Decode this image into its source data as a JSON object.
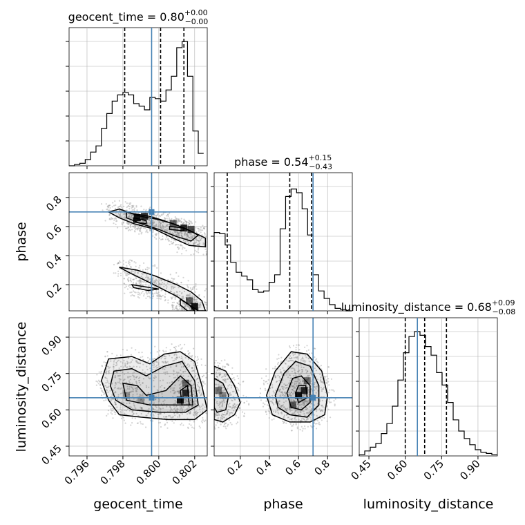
{
  "chart_data": {
    "type": "corner",
    "parameters": [
      {
        "name": "geocent_time",
        "range": [
          0.795,
          0.8027
        ],
        "truth": 0.7996,
        "title": "geocent_time = 0.80",
        "title_sup": "+0.00",
        "title_sub": "−0.00",
        "quantiles": [
          0.7981,
          0.8001,
          0.8014
        ],
        "ticks": [
          0.796,
          0.798,
          0.8,
          0.802
        ],
        "tick_labels": [
          "0.796",
          "0.798",
          "0.800",
          "0.802"
        ]
      },
      {
        "name": "phase",
        "range": [
          0.02,
          0.97
        ],
        "truth": 0.7,
        "title": "phase = 0.54",
        "title_sup": "+0.15",
        "title_sub": "−0.43",
        "quantiles": [
          0.11,
          0.54,
          0.69
        ],
        "ticks": [
          0.2,
          0.4,
          0.6,
          0.8
        ],
        "tick_labels": [
          "0.2",
          "0.4",
          "0.6",
          "0.8"
        ]
      },
      {
        "name": "luminosity_distance",
        "range": [
          0.41,
          0.98
        ],
        "truth": 0.65,
        "title": "luminosity_distance = 0.68",
        "title_sup": "+0.09",
        "title_sub": "−0.08",
        "quantiles": [
          0.6,
          0.68,
          0.77
        ],
        "ticks": [
          0.45,
          0.6,
          0.75,
          0.9
        ],
        "tick_labels": [
          "0.45",
          "0.60",
          "0.75",
          "0.90"
        ]
      }
    ],
    "histograms": [
      {
        "parameter": "geocent_time",
        "bins": [
          0.795,
          0.7953,
          0.7956,
          0.7959,
          0.7962,
          0.7965,
          0.7968,
          0.7971,
          0.7974,
          0.7977,
          0.798,
          0.7983,
          0.7986,
          0.7989,
          0.7992,
          0.7995,
          0.7998,
          0.8001,
          0.8004,
          0.8007,
          0.801,
          0.8013,
          0.8016,
          0.8019,
          0.8022,
          0.8025
        ],
        "counts": [
          0,
          0.01,
          0.02,
          0.05,
          0.11,
          0.16,
          0.3,
          0.42,
          0.52,
          0.57,
          0.59,
          0.57,
          0.5,
          0.48,
          0.45,
          0.55,
          0.54,
          0.52,
          0.61,
          0.72,
          0.95,
          1.0,
          0.72,
          0.28,
          0.1
        ],
        "ylim": [
          0,
          1.0
        ]
      },
      {
        "parameter": "phase",
        "bins": [
          0.02,
          0.0578,
          0.0956,
          0.1334,
          0.1712,
          0.209,
          0.2468,
          0.2846,
          0.3224,
          0.3602,
          0.398,
          0.4358,
          0.4736,
          0.5114,
          0.5492,
          0.587,
          0.6248,
          0.6626,
          0.7004,
          0.7382,
          0.776,
          0.8138,
          0.8516,
          0.8894,
          0.9272,
          0.965
        ],
        "counts": [
          0.63,
          0.62,
          0.53,
          0.39,
          0.31,
          0.28,
          0.25,
          0.17,
          0.15,
          0.16,
          0.23,
          0.29,
          0.66,
          0.92,
          0.98,
          0.95,
          0.82,
          0.61,
          0.29,
          0.16,
          0.1,
          0.05,
          0.02,
          0.01,
          0.0
        ],
        "ylim": [
          0,
          1.0
        ]
      },
      {
        "parameter": "luminosity_distance",
        "bins": [
          0.41,
          0.4328,
          0.4556,
          0.4784,
          0.5012,
          0.524,
          0.5468,
          0.5696,
          0.5924,
          0.6152,
          0.638,
          0.6608,
          0.6836,
          0.7064,
          0.7292,
          0.752,
          0.7748,
          0.7976,
          0.8204,
          0.8432,
          0.866,
          0.8888,
          0.9116,
          0.9344,
          0.9572,
          0.98
        ],
        "counts": [
          0.01,
          0.04,
          0.07,
          0.1,
          0.18,
          0.26,
          0.4,
          0.61,
          0.83,
          0.96,
          1.0,
          0.97,
          0.88,
          0.81,
          0.67,
          0.57,
          0.43,
          0.29,
          0.2,
          0.14,
          0.09,
          0.05,
          0.03,
          0.02,
          0.01
        ],
        "ylim": [
          0,
          1.0
        ]
      }
    ],
    "contour_panels": [
      {
        "x": "geocent_time",
        "y": "phase",
        "levels": [
          [
            [
              0.7978,
              0.72
            ],
            [
              0.7985,
              0.69
            ],
            [
              0.7995,
              0.67
            ],
            [
              0.8003,
              0.64
            ],
            [
              0.8012,
              0.6
            ],
            [
              0.8021,
              0.55
            ],
            [
              0.8026,
              0.52
            ],
            [
              0.8026,
              0.46
            ],
            [
              0.8017,
              0.47
            ],
            [
              0.8008,
              0.52
            ],
            [
              0.7998,
              0.58
            ],
            [
              0.7986,
              0.62
            ],
            [
              0.7978,
              0.66
            ],
            [
              0.7972,
              0.7
            ]
          ],
          [
            [
              0.7982,
              0.7
            ],
            [
              0.799,
              0.67
            ],
            [
              0.7999,
              0.65
            ],
            [
              0.8008,
              0.62
            ],
            [
              0.8016,
              0.58
            ],
            [
              0.8022,
              0.54
            ],
            [
              0.8018,
              0.5
            ],
            [
              0.801,
              0.53
            ],
            [
              0.8,
              0.58
            ],
            [
              0.799,
              0.62
            ],
            [
              0.7982,
              0.66
            ]
          ],
          [
            [
              0.7986,
              0.66
            ],
            [
              0.7993,
              0.64
            ],
            [
              0.7993,
              0.62
            ],
            [
              0.7986,
              0.63
            ]
          ],
          [
            [
              0.8006,
              0.6
            ],
            [
              0.8014,
              0.59
            ],
            [
              0.8014,
              0.57
            ],
            [
              0.8006,
              0.58
            ]
          ],
          [
            [
              0.7978,
              0.32
            ],
            [
              0.7984,
              0.28
            ],
            [
              0.7994,
              0.22
            ],
            [
              0.8002,
              0.17
            ],
            [
              0.801,
              0.12
            ],
            [
              0.8016,
              0.07
            ],
            [
              0.8022,
              0.02
            ],
            [
              0.8026,
              0.02
            ],
            [
              0.8024,
              0.09
            ],
            [
              0.8018,
              0.15
            ],
            [
              0.801,
              0.2
            ],
            [
              0.7998,
              0.26
            ],
            [
              0.7988,
              0.3
            ]
          ],
          [
            [
              0.7985,
              0.2
            ],
            [
              0.7995,
              0.18
            ],
            [
              0.8,
              0.17
            ],
            [
              0.7994,
              0.16
            ],
            [
              0.7986,
              0.18
            ]
          ],
          [
            [
              0.8012,
              0.1
            ],
            [
              0.8017,
              0.06
            ],
            [
              0.802,
              0.02
            ],
            [
              0.8016,
              0.02
            ],
            [
              0.8012,
              0.06
            ]
          ]
        ],
        "dense_cells": [
          [
            0.7988,
            0.66,
            0.9
          ],
          [
            0.7992,
            0.67,
            0.8
          ],
          [
            0.8008,
            0.62,
            0.6
          ],
          [
            0.8014,
            0.59,
            0.8
          ],
          [
            0.8018,
            0.58,
            0.7
          ],
          [
            0.802,
            0.05,
            0.9
          ],
          [
            0.8017,
            0.09,
            0.6
          ]
        ]
      },
      {
        "x": "geocent_time",
        "y": "luminosity_distance",
        "levels": [
          [
            [
              0.7972,
              0.81
            ],
            [
              0.7985,
              0.82
            ],
            [
              0.7995,
              0.79
            ],
            [
              0.8003,
              0.83
            ],
            [
              0.8012,
              0.84
            ],
            [
              0.802,
              0.8
            ],
            [
              0.8024,
              0.7
            ],
            [
              0.8027,
              0.6
            ],
            [
              0.802,
              0.56
            ],
            [
              0.8005,
              0.56
            ],
            [
              0.799,
              0.57
            ],
            [
              0.7978,
              0.58
            ],
            [
              0.7972,
              0.64
            ],
            [
              0.7968,
              0.72
            ]
          ],
          [
            [
              0.7975,
              0.76
            ],
            [
              0.7985,
              0.77
            ],
            [
              0.7993,
              0.74
            ],
            [
              0.8003,
              0.78
            ],
            [
              0.8013,
              0.8
            ],
            [
              0.802,
              0.72
            ],
            [
              0.8022,
              0.62
            ],
            [
              0.8015,
              0.59
            ],
            [
              0.8,
              0.59
            ],
            [
              0.7985,
              0.6
            ],
            [
              0.7976,
              0.64
            ],
            [
              0.7973,
              0.7
            ]
          ],
          [
            [
              0.798,
              0.71
            ],
            [
              0.7988,
              0.7
            ],
            [
              0.7993,
              0.66
            ],
            [
              0.8004,
              0.68
            ],
            [
              0.8012,
              0.74
            ],
            [
              0.8018,
              0.7
            ],
            [
              0.8019,
              0.62
            ],
            [
              0.801,
              0.62
            ],
            [
              0.7995,
              0.62
            ],
            [
              0.7982,
              0.64
            ]
          ],
          [
            [
              0.8012,
              0.68
            ],
            [
              0.8016,
              0.7
            ],
            [
              0.8017,
              0.62
            ],
            [
              0.8013,
              0.62
            ]
          ]
        ],
        "dense_cells": [
          [
            0.7982,
            0.66,
            0.3
          ],
          [
            0.799,
            0.64,
            0.3
          ],
          [
            0.8012,
            0.64,
            0.9
          ],
          [
            0.8015,
            0.67,
            0.8
          ],
          [
            0.8015,
            0.71,
            0.5
          ]
        ]
      },
      {
        "x": "phase",
        "y": "luminosity_distance",
        "levels": [
          [
            [
              0.02,
              0.78
            ],
            [
              0.1,
              0.76
            ],
            [
              0.16,
              0.7
            ],
            [
              0.2,
              0.63
            ],
            [
              0.16,
              0.58
            ],
            [
              0.08,
              0.55
            ],
            [
              0.02,
              0.56
            ]
          ],
          [
            [
              0.02,
              0.73
            ],
            [
              0.08,
              0.71
            ],
            [
              0.12,
              0.66
            ],
            [
              0.1,
              0.6
            ],
            [
              0.04,
              0.59
            ],
            [
              0.02,
              0.61
            ]
          ],
          [
            [
              0.38,
              0.66
            ],
            [
              0.44,
              0.76
            ],
            [
              0.55,
              0.84
            ],
            [
              0.66,
              0.83
            ],
            [
              0.76,
              0.76
            ],
            [
              0.8,
              0.66
            ],
            [
              0.78,
              0.58
            ],
            [
              0.68,
              0.55
            ],
            [
              0.54,
              0.55
            ],
            [
              0.42,
              0.58
            ]
          ],
          [
            [
              0.44,
              0.66
            ],
            [
              0.5,
              0.75
            ],
            [
              0.58,
              0.8
            ],
            [
              0.68,
              0.78
            ],
            [
              0.74,
              0.7
            ],
            [
              0.74,
              0.62
            ],
            [
              0.66,
              0.57
            ],
            [
              0.54,
              0.58
            ],
            [
              0.46,
              0.61
            ]
          ],
          [
            [
              0.52,
              0.67
            ],
            [
              0.56,
              0.73
            ],
            [
              0.62,
              0.74
            ],
            [
              0.68,
              0.7
            ],
            [
              0.68,
              0.63
            ],
            [
              0.62,
              0.6
            ],
            [
              0.55,
              0.61
            ]
          ],
          [
            [
              0.58,
              0.67
            ],
            [
              0.6,
              0.7
            ],
            [
              0.65,
              0.7
            ],
            [
              0.66,
              0.65
            ],
            [
              0.6,
              0.63
            ]
          ]
        ],
        "dense_cells": [
          [
            0.05,
            0.68,
            0.5
          ],
          [
            0.08,
            0.66,
            0.4
          ],
          [
            0.6,
            0.66,
            0.9
          ],
          [
            0.64,
            0.68,
            0.8
          ],
          [
            0.56,
            0.62,
            0.6
          ],
          [
            0.66,
            0.72,
            0.5
          ]
        ]
      }
    ],
    "truth_color": "#4682b4",
    "line_color": "#000000",
    "grid": true,
    "scatter_color": "#9e9e9e"
  }
}
